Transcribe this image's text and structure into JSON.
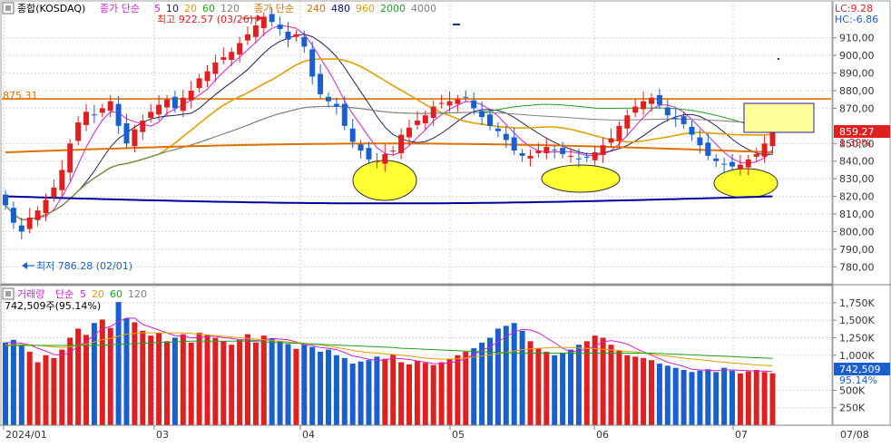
{
  "price_panel": {
    "index_label": "종합(KOSDAQ)",
    "ma_title": "종가 단순",
    "ma_periods": [
      "5",
      "10",
      "20",
      "60",
      "120"
    ],
    "ma_colors": [
      "#d020d0",
      "#202060",
      "#e0a000",
      "#20a020",
      "#808080"
    ],
    "ma2_title": "종가 단순",
    "ma2_periods": [
      "240",
      "480",
      "960",
      "2000",
      "4000"
    ],
    "ma2_colors": [
      "#e07000",
      "#0000a0",
      "#e0a000",
      "#20a020",
      "#808080"
    ],
    "lc": "LC:9.28",
    "hc": "HC:-6.86",
    "high_note": "최고 922.57 (03/26)",
    "low_note": "최저 786.28 (02/01)",
    "ref_line_label": "875.31",
    "current_price": "859.27",
    "current_change": "1.39%"
  },
  "volume_panel": {
    "title": "거래량",
    "ma_title": "단순",
    "ma_periods": [
      "5",
      "20",
      "60",
      "120"
    ],
    "ma_colors": [
      "#d020d0",
      "#e0a000",
      "#20a020",
      "#808080"
    ],
    "info": "742,509주(95.14%)",
    "current_volume": "742,509",
    "current_ratio": "95.14%"
  },
  "x_axis": {
    "labels": [
      "2024/01",
      "03",
      "04",
      "05",
      "06",
      "07"
    ],
    "right_label": "07/08"
  },
  "colors": {
    "up": "#e02020",
    "down": "#1a5fd0",
    "ma240": "#e07000",
    "ma480": "#0000a0",
    "highlight": "#ffff33"
  },
  "chart_data": [
    {
      "type": "candlestick",
      "y_axis_labels": [
        "910,00",
        "900,00",
        "890,00",
        "880,00",
        "870,00",
        "850,00",
        "840,00",
        "830,00",
        "820,00",
        "810,00",
        "800,00",
        "790,00",
        "780,00"
      ],
      "ylim": [
        775,
        925
      ],
      "reference_line": 875.31,
      "close": [
        815,
        805,
        800,
        808,
        812,
        818,
        825,
        835,
        850,
        862,
        868,
        866,
        870,
        874,
        860,
        850,
        858,
        863,
        868,
        872,
        875,
        870,
        876,
        880,
        887,
        891,
        896,
        899,
        902,
        907,
        912,
        917,
        922,
        919,
        915,
        909,
        912,
        905,
        888,
        878,
        874,
        871,
        860,
        851,
        846,
        841,
        840,
        844,
        846,
        855,
        859,
        863,
        866,
        871,
        873,
        874,
        875,
        876,
        870,
        865,
        860,
        857,
        852,
        846,
        843,
        843,
        846,
        848,
        846,
        844,
        843,
        841,
        842,
        845,
        849,
        853,
        860,
        866,
        871,
        874,
        876,
        872,
        866,
        864,
        861,
        855,
        849,
        843,
        840,
        838,
        837,
        838,
        841,
        844,
        850,
        859
      ]
    },
    {
      "type": "bar",
      "y_axis_labels": [
        "1,750K",
        "1,500K",
        "1,250K",
        "1,000K",
        "500K",
        "250K"
      ],
      "ylim": [
        0,
        1850
      ],
      "values": [
        1180,
        1220,
        1150,
        1050,
        900,
        1000,
        960,
        1080,
        1250,
        1380,
        1290,
        1460,
        1510,
        1390,
        1760,
        1530,
        1470,
        1350,
        1280,
        1320,
        1200,
        1250,
        1300,
        1180,
        1320,
        1290,
        1250,
        1200,
        1150,
        1220,
        1300,
        1180,
        1280,
        1240,
        1200,
        1160,
        1090,
        1150,
        1120,
        1050,
        1080,
        1000,
        960,
        880,
        910,
        930,
        980,
        950,
        1010,
        900,
        870,
        920,
        890,
        860,
        900,
        940,
        1000,
        1050,
        1100,
        1180,
        1250,
        1380,
        1420,
        1460,
        1350,
        1200,
        1100,
        1050,
        1000,
        1030,
        1080,
        1150,
        1200,
        1280,
        1250,
        1150,
        1070,
        1000,
        980,
        960,
        930,
        880,
        850,
        820,
        790,
        760,
        780,
        800,
        760,
        820,
        780,
        740,
        770,
        790,
        760,
        742
      ],
      "ma5": [
        1180,
        1180,
        1170,
        1150,
        1100,
        1060,
        1010,
        1000,
        1040,
        1130,
        1190,
        1290,
        1380,
        1410,
        1480,
        1530,
        1530,
        1440,
        1400,
        1360,
        1320,
        1280,
        1270,
        1250,
        1250,
        1270,
        1270,
        1250,
        1240,
        1220,
        1220,
        1210,
        1220,
        1240,
        1230,
        1220,
        1190,
        1150,
        1140,
        1110,
        1100,
        1080,
        1040,
        990,
        970,
        940,
        930,
        930,
        960,
        950,
        940,
        920,
        900,
        880,
        880,
        890,
        910,
        950,
        1010,
        1070,
        1120,
        1190,
        1270,
        1330,
        1370,
        1360,
        1320,
        1250,
        1180,
        1100,
        1050,
        1060,
        1090,
        1130,
        1190,
        1210,
        1190,
        1160,
        1100,
        1050,
        1000,
        950,
        900,
        870,
        840,
        800,
        790,
        785,
        780,
        790,
        790,
        785,
        780,
        775,
        775,
        765
      ],
      "ma20": [
        1150,
        1150,
        1150,
        1150,
        1140,
        1130,
        1120,
        1110,
        1120,
        1140,
        1160,
        1190,
        1220,
        1240,
        1270,
        1300,
        1310,
        1320,
        1320,
        1320,
        1320,
        1320,
        1320,
        1310,
        1300,
        1290,
        1280,
        1270,
        1260,
        1250,
        1240,
        1230,
        1220,
        1210,
        1200,
        1190,
        1180,
        1170,
        1160,
        1150,
        1130,
        1110,
        1090,
        1070,
        1050,
        1040,
        1030,
        1020,
        1010,
        1000,
        990,
        975,
        960,
        950,
        945,
        945,
        950,
        960,
        975,
        990,
        1005,
        1020,
        1040,
        1060,
        1080,
        1090,
        1100,
        1105,
        1110,
        1110,
        1110,
        1105,
        1100,
        1095,
        1085,
        1075,
        1065,
        1055,
        1045,
        1030,
        1015,
        1000,
        990,
        975,
        960,
        945,
        935,
        925,
        910,
        900,
        890,
        880,
        870,
        860,
        855,
        850
      ],
      "ma60": [
        1140,
        1140,
        1140,
        1140,
        1140,
        1140,
        1140,
        1140,
        1140,
        1140,
        1140,
        1140,
        1145,
        1150,
        1155,
        1160,
        1165,
        1170,
        1175,
        1180,
        1185,
        1190,
        1195,
        1200,
        1200,
        1200,
        1200,
        1200,
        1200,
        1200,
        1200,
        1195,
        1190,
        1185,
        1180,
        1175,
        1170,
        1165,
        1160,
        1155,
        1150,
        1145,
        1140,
        1135,
        1130,
        1125,
        1120,
        1115,
        1110,
        1100,
        1095,
        1090,
        1085,
        1080,
        1075,
        1070,
        1065,
        1060,
        1055,
        1050,
        1045,
        1040,
        1035,
        1030,
        1030,
        1030,
        1030,
        1030,
        1030,
        1030,
        1030,
        1030,
        1030,
        1030,
        1030,
        1030,
        1030,
        1030,
        1030,
        1030,
        1030,
        1025,
        1020,
        1015,
        1010,
        1005,
        1000,
        995,
        990,
        985,
        980,
        975,
        970,
        965,
        960,
        955
      ]
    }
  ]
}
